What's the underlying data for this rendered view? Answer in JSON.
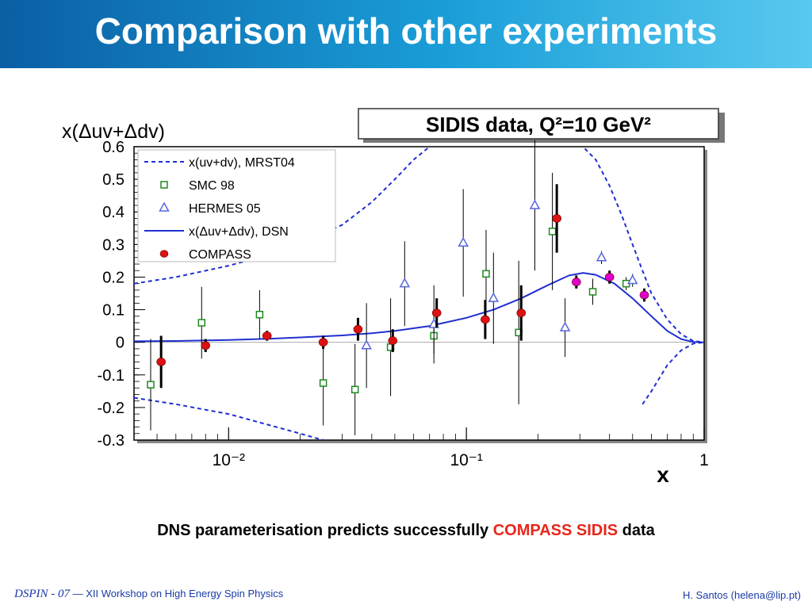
{
  "slide": {
    "title": "Comparison with other experiments",
    "caption_prefix": "DNS parameterisation predicts successfully ",
    "caption_highlight": "COMPASS SIDIS",
    "caption_suffix": " data",
    "footer_conf": "DSPIN - 07",
    "footer_dash": "—",
    "footer_workshop": "XII Workshop on High Energy Spin Physics",
    "footer_author": "H. Santos  (helena@lip.pt)"
  },
  "colors": {
    "accent": "#1a9ed8",
    "highlight": "#e8261b",
    "theory": "#1f2fd0",
    "smc": "#1e8a1e",
    "hermes": "#5566dd",
    "compass": "#dd1111",
    "compass_highx": "#e000cc"
  },
  "chart_data": {
    "type": "scatter",
    "title": "SIDIS data, Q²=10 GeV²",
    "ylabel": "x(Δuv+Δdv)",
    "xlabel": "x",
    "x_scale": "log",
    "xlim": [
      0.004,
      1.0
    ],
    "ylim": [
      -0.3,
      0.6
    ],
    "xticks": [
      {
        "value": 0.01,
        "label": "10⁻²"
      },
      {
        "value": 0.1,
        "label": "10⁻¹"
      },
      {
        "value": 1,
        "label": "1"
      }
    ],
    "yticks": [
      -0.3,
      -0.2,
      -0.1,
      0,
      0.1,
      0.2,
      0.3,
      0.4,
      0.5,
      0.6
    ],
    "ytick_labels": [
      "-0.3",
      "-0.2",
      "-0.1",
      "0",
      "0.1",
      "0.2",
      "0.3",
      "0.4",
      "0.5",
      "0.6"
    ],
    "legend_position": "top-left",
    "legend": [
      {
        "label": "x(uv+dv), MRST04",
        "marker": "dashed-line"
      },
      {
        "label": "SMC 98",
        "marker": "open-square"
      },
      {
        "label": "HERMES 05",
        "marker": "open-triangle"
      },
      {
        "label": "x(Δuv+Δdv), DSN",
        "marker": "solid-line"
      },
      {
        "label": "COMPASS",
        "marker": "filled-circle"
      }
    ],
    "series": [
      {
        "name": "SMC 98",
        "marker": "open-square",
        "points": [
          {
            "x": 0.0047,
            "y": -0.13,
            "err": 0.14
          },
          {
            "x": 0.0077,
            "y": 0.06,
            "err": 0.11
          },
          {
            "x": 0.0135,
            "y": 0.085,
            "err": 0.075
          },
          {
            "x": 0.025,
            "y": -0.125,
            "err": 0.13
          },
          {
            "x": 0.034,
            "y": -0.145,
            "err": 0.14
          },
          {
            "x": 0.048,
            "y": -0.015,
            "err": 0.15
          },
          {
            "x": 0.073,
            "y": 0.02,
            "err": 0.055
          },
          {
            "x": 0.121,
            "y": 0.21,
            "err": 0.135
          },
          {
            "x": 0.166,
            "y": 0.03,
            "err": 0.22
          },
          {
            "x": 0.23,
            "y": 0.34,
            "err": 0.18
          },
          {
            "x": 0.34,
            "y": 0.155,
            "err": 0.04
          },
          {
            "x": 0.47,
            "y": 0.18,
            "err": 0.02
          }
        ]
      },
      {
        "name": "HERMES 05",
        "marker": "open-triangle",
        "points": [
          {
            "x": 0.038,
            "y": -0.01,
            "err": 0.13
          },
          {
            "x": 0.055,
            "y": 0.18,
            "err": 0.13
          },
          {
            "x": 0.073,
            "y": 0.055,
            "err": 0.12
          },
          {
            "x": 0.097,
            "y": 0.305,
            "err": 0.165
          },
          {
            "x": 0.13,
            "y": 0.135,
            "err": 0.14
          },
          {
            "x": 0.194,
            "y": 0.42,
            "err": 0.2
          },
          {
            "x": 0.26,
            "y": 0.045,
            "err": 0.09
          },
          {
            "x": 0.37,
            "y": 0.26,
            "err": 0.02
          },
          {
            "x": 0.5,
            "y": 0.19,
            "err": 0.02
          }
        ]
      },
      {
        "name": "COMPASS",
        "marker": "filled-circle",
        "points": [
          {
            "x": 0.0052,
            "y": -0.06,
            "err": 0.08
          },
          {
            "x": 0.008,
            "y": -0.01,
            "err": 0.02
          },
          {
            "x": 0.0145,
            "y": 0.02,
            "err": 0.015
          },
          {
            "x": 0.025,
            "y": 0.0,
            "err": 0.02
          },
          {
            "x": 0.035,
            "y": 0.04,
            "err": 0.035
          },
          {
            "x": 0.049,
            "y": 0.005,
            "err": 0.035
          },
          {
            "x": 0.075,
            "y": 0.09,
            "err": 0.045
          },
          {
            "x": 0.12,
            "y": 0.07,
            "err": 0.06
          },
          {
            "x": 0.17,
            "y": 0.09,
            "err": 0.085
          },
          {
            "x": 0.24,
            "y": 0.38,
            "err": 0.105
          },
          {
            "x": 0.29,
            "y": 0.185,
            "err": 0.02
          },
          {
            "x": 0.4,
            "y": 0.2,
            "err": 0.02
          },
          {
            "x": 0.56,
            "y": 0.145,
            "err": 0.02
          }
        ]
      },
      {
        "name": "x(Δuv+Δdv), DSN",
        "style": "solid",
        "points": [
          {
            "x": 0.004,
            "y": 0.003
          },
          {
            "x": 0.006,
            "y": 0.004
          },
          {
            "x": 0.01,
            "y": 0.007
          },
          {
            "x": 0.015,
            "y": 0.011
          },
          {
            "x": 0.02,
            "y": 0.015
          },
          {
            "x": 0.03,
            "y": 0.021
          },
          {
            "x": 0.04,
            "y": 0.028
          },
          {
            "x": 0.05,
            "y": 0.035
          },
          {
            "x": 0.07,
            "y": 0.05
          },
          {
            "x": 0.1,
            "y": 0.075
          },
          {
            "x": 0.13,
            "y": 0.1
          },
          {
            "x": 0.17,
            "y": 0.135
          },
          {
            "x": 0.22,
            "y": 0.175
          },
          {
            "x": 0.27,
            "y": 0.205
          },
          {
            "x": 0.31,
            "y": 0.213
          },
          {
            "x": 0.35,
            "y": 0.207
          },
          {
            "x": 0.42,
            "y": 0.18
          },
          {
            "x": 0.5,
            "y": 0.135
          },
          {
            "x": 0.6,
            "y": 0.08
          },
          {
            "x": 0.7,
            "y": 0.035
          },
          {
            "x": 0.8,
            "y": 0.01
          },
          {
            "x": 0.9,
            "y": 0.001
          },
          {
            "x": 1.0,
            "y": 0.0
          }
        ]
      },
      {
        "name": "x(uv+dv), MRST04",
        "style": "dashed",
        "points": [
          {
            "x": 0.004,
            "y": 0.18
          },
          {
            "x": 0.006,
            "y": 0.2
          },
          {
            "x": 0.01,
            "y": 0.235
          },
          {
            "x": 0.015,
            "y": 0.27
          },
          {
            "x": 0.02,
            "y": 0.305
          },
          {
            "x": 0.03,
            "y": 0.36
          },
          {
            "x": 0.04,
            "y": 0.43
          },
          {
            "x": 0.05,
            "y": 0.5
          },
          {
            "x": 0.06,
            "y": 0.56
          },
          {
            "x": 0.07,
            "y": 0.6
          }
        ]
      },
      {
        "name": "x(uv+dv), MRST04 (high x)",
        "style": "dashed",
        "points": [
          {
            "x": 0.3,
            "y": 0.61
          },
          {
            "x": 0.35,
            "y": 0.56
          },
          {
            "x": 0.4,
            "y": 0.48
          },
          {
            "x": 0.45,
            "y": 0.39
          },
          {
            "x": 0.5,
            "y": 0.3
          },
          {
            "x": 0.55,
            "y": 0.22
          },
          {
            "x": 0.6,
            "y": 0.15
          },
          {
            "x": 0.7,
            "y": 0.07
          },
          {
            "x": 0.8,
            "y": 0.025
          },
          {
            "x": 0.9,
            "y": 0.004
          },
          {
            "x": 1.0,
            "y": 0.0
          }
        ]
      },
      {
        "name": "-x(uv+dv), MRST04",
        "style": "dashed",
        "points": [
          {
            "x": 0.004,
            "y": -0.17
          },
          {
            "x": 0.006,
            "y": -0.19
          },
          {
            "x": 0.01,
            "y": -0.22
          },
          {
            "x": 0.015,
            "y": -0.255
          },
          {
            "x": 0.02,
            "y": -0.28
          },
          {
            "x": 0.025,
            "y": -0.3
          }
        ]
      },
      {
        "name": "-x(uv+dv), MRST04 (high x)",
        "style": "dashed",
        "points": [
          {
            "x": 0.55,
            "y": -0.19
          },
          {
            "x": 0.6,
            "y": -0.15
          },
          {
            "x": 0.7,
            "y": -0.07
          },
          {
            "x": 0.8,
            "y": -0.025
          },
          {
            "x": 0.9,
            "y": -0.004
          },
          {
            "x": 1.0,
            "y": 0.0
          }
        ]
      }
    ]
  }
}
